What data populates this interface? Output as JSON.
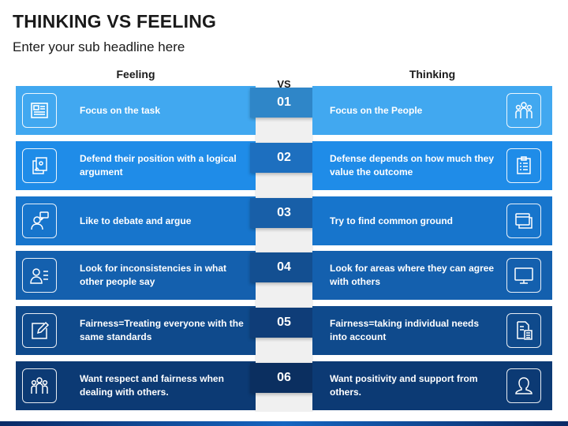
{
  "title": "THINKING VS FEELING",
  "subtitle": "Enter your sub headline here",
  "headers": {
    "left": "Feeling",
    "right": "Thinking",
    "vs": "VS"
  },
  "colors": {
    "rows": [
      "#41a8f0",
      "#1f8ce8",
      "#1775cc",
      "#1460ae",
      "#0f4a8c",
      "#0c3a74"
    ],
    "badges": [
      "#2f86c8",
      "#1d6fbf",
      "#185fa8",
      "#134f91",
      "#0f3d78",
      "#0b2f60"
    ]
  },
  "rows": [
    {
      "num": "01",
      "left": "Focus on the task",
      "right": "Focus on the People",
      "left_icon": "newspaper-icon",
      "right_icon": "people-group-icon"
    },
    {
      "num": "02",
      "left": "Defend their position with a logical argument",
      "right": "Defense depends on how much they value the outcome",
      "left_icon": "documents-icon",
      "right_icon": "clipboard-icon"
    },
    {
      "num": "03",
      "left": "Like to debate and argue",
      "right": "Try to find common ground",
      "left_icon": "speaker-chat-icon",
      "right_icon": "windows-icon"
    },
    {
      "num": "04",
      "left": "Look for inconsistencies in what other people say",
      "right": "Look for areas where they can agree with others",
      "left_icon": "user-list-icon",
      "right_icon": "monitor-icon"
    },
    {
      "num": "05",
      "left": "Fairness=Treating everyone with the same standards",
      "right": "Fairness=taking individual needs into account",
      "left_icon": "edit-icon",
      "right_icon": "calculator-document-icon"
    },
    {
      "num": "06",
      "left": "Want respect and fairness when dealing with others.",
      "right": "Want positivity and support from others.",
      "left_icon": "people-group-icon",
      "right_icon": "user-icon"
    }
  ]
}
